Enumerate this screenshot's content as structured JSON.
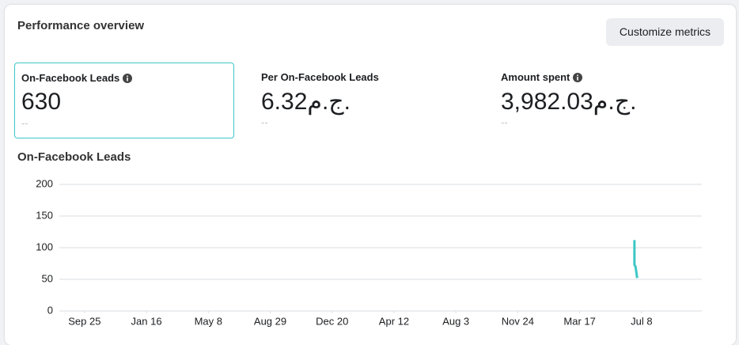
{
  "header": {
    "title": "Performance overview",
    "button": "Customize metrics"
  },
  "metrics": [
    {
      "label": "On-Facebook Leads",
      "value": "630",
      "change": "--"
    },
    {
      "label": "Per On-Facebook Leads",
      "value": "6.32ج.م.",
      "change": "--"
    },
    {
      "label": "Amount spent",
      "value": "3,982.03ج.م.",
      "change": "--"
    }
  ],
  "chart_data": {
    "type": "line",
    "title": "On-Facebook Leads",
    "series": [
      {
        "name": "On-Facebook Leads",
        "color": "#3cc7c5",
        "x": [
          1004,
          1004,
          1006,
          1009
        ],
        "values": [
          112,
          73,
          70,
          52
        ]
      }
    ],
    "xlim": [
      -46,
      1127
    ],
    "xticks": [
      {
        "value": 0,
        "label": "Sep 25"
      },
      {
        "value": 113,
        "label": "Jan 16"
      },
      {
        "value": 226,
        "label": "May 8"
      },
      {
        "value": 339,
        "label": "Aug 29"
      },
      {
        "value": 452,
        "label": "Dec 20"
      },
      {
        "value": 565,
        "label": "Apr 12"
      },
      {
        "value": 678,
        "label": "Aug 3"
      },
      {
        "value": 791,
        "label": "Nov 24"
      },
      {
        "value": 904,
        "label": "Mar 17"
      },
      {
        "value": 1017,
        "label": "Jul 8"
      }
    ],
    "ylim": [
      0,
      200
    ],
    "yticks": [
      0,
      50,
      100,
      150,
      200
    ],
    "grid": true
  }
}
